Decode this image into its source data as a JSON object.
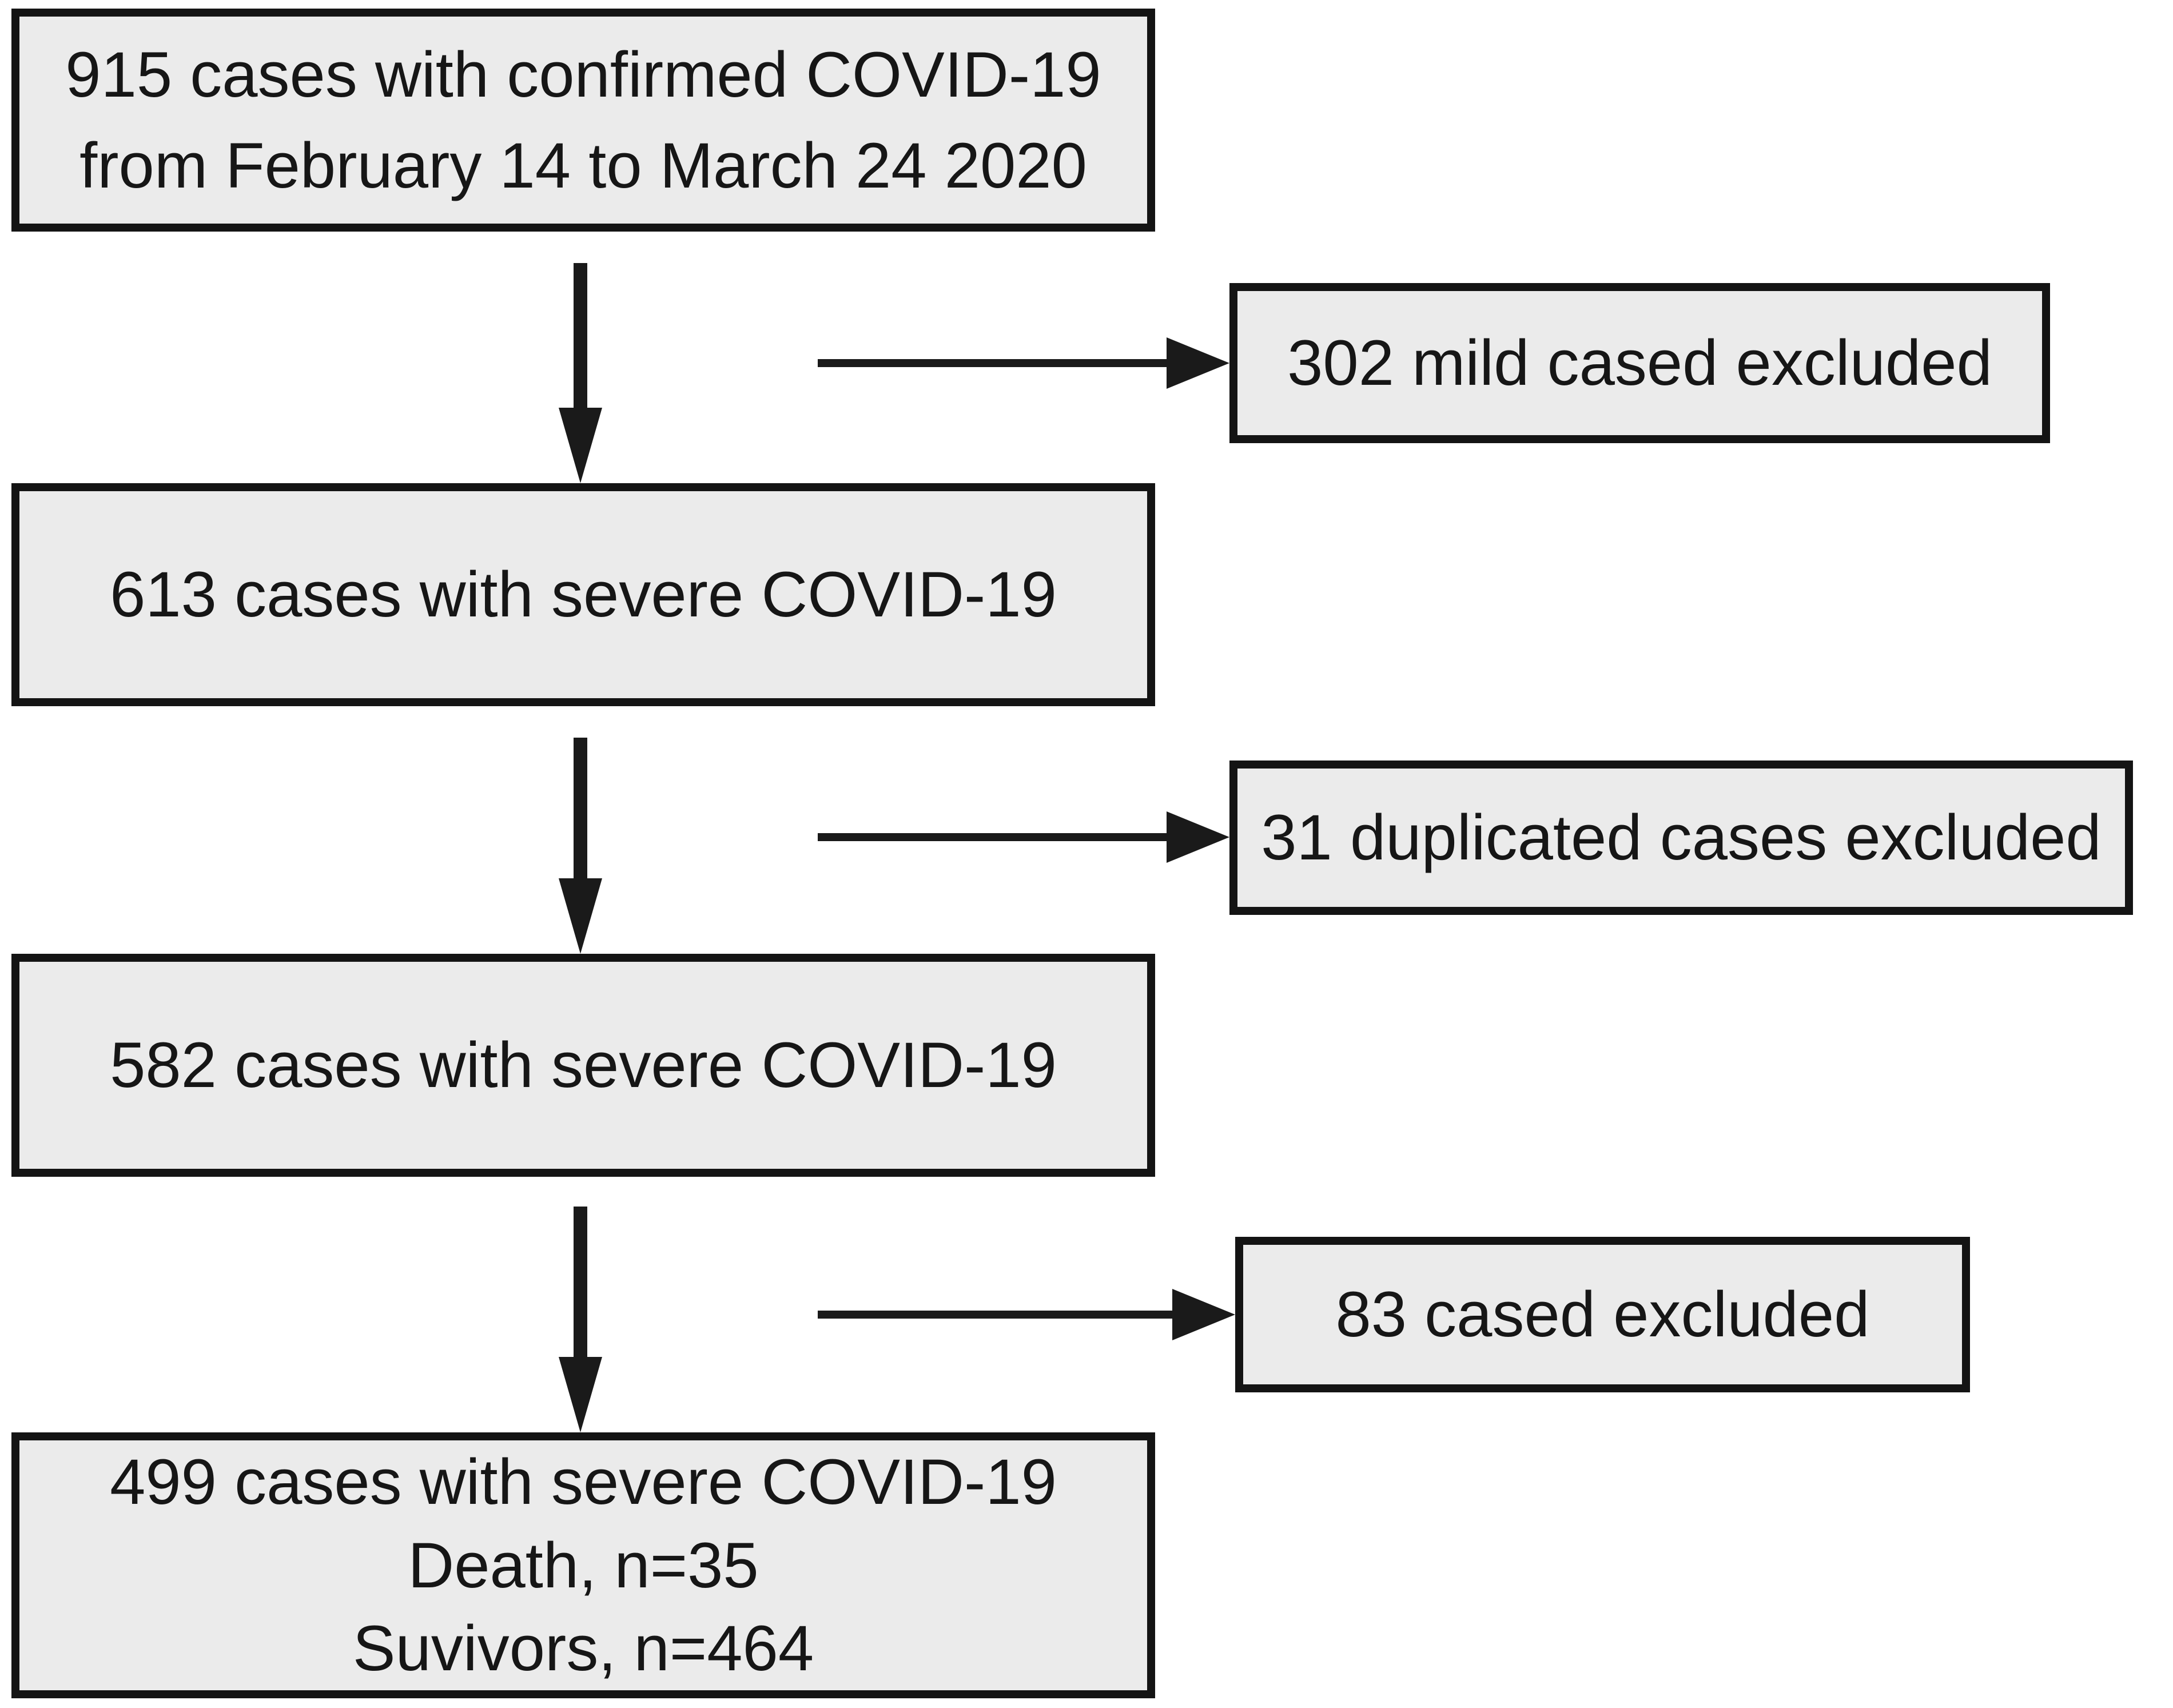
{
  "figure": {
    "type": "flowchart",
    "background": "#ffffff",
    "box_fill": "#ebebeb",
    "box_border_color": "#141414",
    "text_color": "#161616",
    "arrow_color": "#1a1a1a",
    "nodes": {
      "confirmed": {
        "line1": "915 cases with confirmed COVID-19",
        "line2": "from February 14 to March 24 2020"
      },
      "severe613": {
        "line1": "613 cases with severe COVID-19"
      },
      "severe582": {
        "line1": "582 cases with severe COVID-19"
      },
      "final": {
        "line1": "499 cases with severe COVID-19",
        "line2": "Death, n=35",
        "line3": "Suvivors, n=464"
      }
    },
    "exclusions": {
      "mild": {
        "label": "302 mild cased excluded"
      },
      "duplicated": {
        "label": "31 duplicated cases excluded"
      },
      "other": {
        "label": "83 cased excluded"
      }
    }
  }
}
